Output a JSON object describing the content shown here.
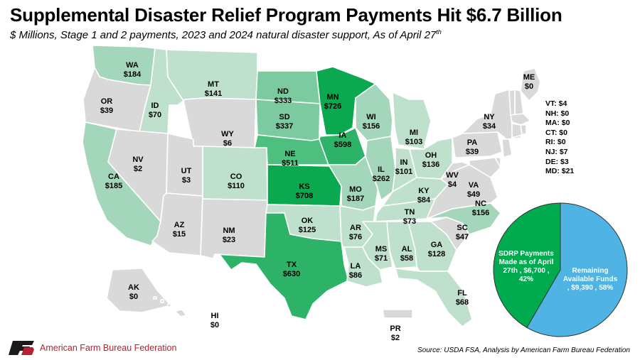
{
  "title": "Supplemental Disaster Relief Program Payments Hit $6.7 Billion",
  "subtitle": "$ Millions, Stage 1 and 2 payments, 2023 and 2024 natural disaster support, As of April 27",
  "subtitle_sup": "th",
  "colors": {
    "level0": "#d9d9d9",
    "level1": "#bfe0cd",
    "level2": "#a3d6ba",
    "level3": "#7ccba0",
    "level4": "#4fbf80",
    "level5": "#2db368",
    "level6": "#0aa84f",
    "pie_paid": "#00aa4f",
    "pie_remaining": "#4fb3e3",
    "logo_red": "#b8202f"
  },
  "states": [
    {
      "abbr": "WA",
      "value": "$184"
    },
    {
      "abbr": "OR",
      "value": "$39"
    },
    {
      "abbr": "CA",
      "value": "$185"
    },
    {
      "abbr": "ID",
      "value": "$70"
    },
    {
      "abbr": "NV",
      "value": "$2"
    },
    {
      "abbr": "MT",
      "value": "$141"
    },
    {
      "abbr": "WY",
      "value": "$6"
    },
    {
      "abbr": "UT",
      "value": "$3"
    },
    {
      "abbr": "AZ",
      "value": "$15"
    },
    {
      "abbr": "CO",
      "value": "$110"
    },
    {
      "abbr": "NM",
      "value": "$23"
    },
    {
      "abbr": "ND",
      "value": "$333"
    },
    {
      "abbr": "SD",
      "value": "$337"
    },
    {
      "abbr": "NE",
      "value": "$511"
    },
    {
      "abbr": "KS",
      "value": "$708"
    },
    {
      "abbr": "OK",
      "value": "$125"
    },
    {
      "abbr": "TX",
      "value": "$630"
    },
    {
      "abbr": "MN",
      "value": "$726"
    },
    {
      "abbr": "IA",
      "value": "$598"
    },
    {
      "abbr": "MO",
      "value": "$187"
    },
    {
      "abbr": "AR",
      "value": "$76"
    },
    {
      "abbr": "LA",
      "value": "$86"
    },
    {
      "abbr": "WI",
      "value": "$156"
    },
    {
      "abbr": "IL",
      "value": "$262"
    },
    {
      "abbr": "MI",
      "value": "$103"
    },
    {
      "abbr": "IN",
      "value": "$101"
    },
    {
      "abbr": "OH",
      "value": "$136"
    },
    {
      "abbr": "KY",
      "value": "$84"
    },
    {
      "abbr": "TN",
      "value": "$73"
    },
    {
      "abbr": "MS",
      "value": "$71"
    },
    {
      "abbr": "AL",
      "value": "$58"
    },
    {
      "abbr": "GA",
      "value": "$128"
    },
    {
      "abbr": "FL",
      "value": "$68"
    },
    {
      "abbr": "SC",
      "value": "$47"
    },
    {
      "abbr": "NC",
      "value": "$156"
    },
    {
      "abbr": "VA",
      "value": "$49"
    },
    {
      "abbr": "WV",
      "value": "$4"
    },
    {
      "abbr": "PA",
      "value": "$39"
    },
    {
      "abbr": "NY",
      "value": "$34"
    },
    {
      "abbr": "ME",
      "value": "$0"
    },
    {
      "abbr": "AK",
      "value": "$0"
    },
    {
      "abbr": "HI",
      "value": "$0"
    },
    {
      "abbr": "PR",
      "value": "$2"
    }
  ],
  "northeast_list": [
    "VT: $4",
    "NH: $0",
    "MA: $0",
    "CT: $0",
    "RI: $0",
    "NJ: $7",
    "DE: $3",
    "MD: $21"
  ],
  "pie": {
    "paid": {
      "lines": [
        "SDRP Payments",
        "Made as of April",
        "27th , $6,700 ,",
        "42%"
      ],
      "value": 6700,
      "percent": 42
    },
    "remaining": {
      "lines": [
        "Remaining",
        "Available Funds",
        ", $9,390 , 58%"
      ],
      "value": 9390,
      "percent": 58
    }
  },
  "footer": {
    "logo_text": "FB",
    "org_name": "American Farm Bureau Federation",
    "source": "Source: USDA FSA, Analysis by American Farm Bureau Federation"
  }
}
